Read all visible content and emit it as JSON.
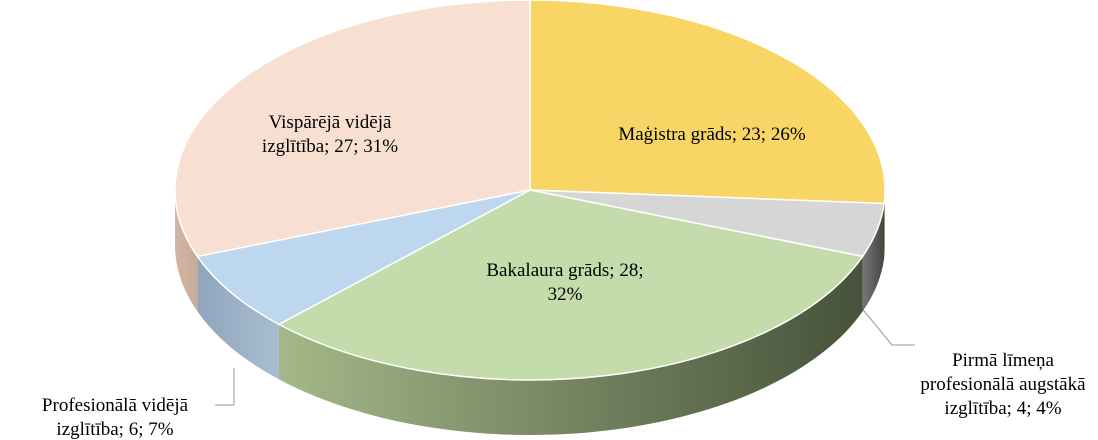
{
  "chart_data": {
    "type": "pie",
    "categories": [
      "Maģistra grāds",
      "Pirmā līmeņa profesionālā augstākā izglītība",
      "Bakalaura grāds",
      "Profesionālā vidējā izglītība",
      "Vispārējā vidējā izglītība"
    ],
    "values": [
      23,
      4,
      28,
      6,
      27
    ],
    "value_labels": [
      "Maģistra grāds; 23; 26%",
      "Pirmā līmeņa profesionālā augstākā izglītība; 4; 4%",
      "Bakalaura grāds; 28; 32%",
      "Profesionālā vidējā izglītība; 6; 7%",
      "Vispārējā vidējā izglītība; 27; 31%"
    ],
    "colors": [
      "#f9d565",
      "#d6d6d6",
      "#c4dcab",
      "#bdd7ee",
      "#f7dfd1"
    ]
  }
}
